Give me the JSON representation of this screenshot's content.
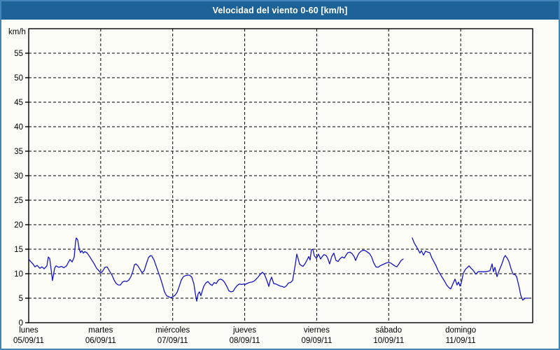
{
  "header": {
    "title": "Velocidad del viento 0-60 [km/h]"
  },
  "colors": {
    "titlebar_bg": "#1E6397",
    "window_border": "#4385B8",
    "chart_bg": "#FDFDF8",
    "line": "#1414C8",
    "grid": "#000000",
    "text": "#000000"
  },
  "chart_data": {
    "type": "line",
    "title": "Velocidad del viento 0-60 [km/h]",
    "ylabel": "km/h",
    "xlabel": "",
    "ylim": [
      0,
      60
    ],
    "xlim": [
      0,
      7
    ],
    "yticks": [
      0,
      5,
      10,
      15,
      20,
      25,
      30,
      35,
      40,
      45,
      50,
      55
    ],
    "grid": "dashed",
    "legend_position": "none",
    "x_unit": "days",
    "x_categories": [
      {
        "day": "lunes",
        "date": "05/09/11"
      },
      {
        "day": "martes",
        "date": "06/09/11"
      },
      {
        "day": "miércoles",
        "date": "07/09/11"
      },
      {
        "day": "jueves",
        "date": "08/09/11"
      },
      {
        "day": "viernes",
        "date": "09/09/11"
      },
      {
        "day": "sábado",
        "date": "10/09/11"
      },
      {
        "day": "domingo",
        "date": "11/09/11"
      }
    ],
    "series": [
      {
        "name": "Velocidad del viento [km/h]",
        "segments": [
          [
            [
              0,
              13
            ],
            [
              0.019,
              12.6
            ],
            [
              0.058,
              12
            ],
            [
              0.087,
              11.4
            ],
            [
              0.117,
              11.7
            ],
            [
              0.156,
              11.1
            ],
            [
              0.185,
              11.4
            ],
            [
              0.214,
              11
            ],
            [
              0.253,
              11.6
            ],
            [
              0.272,
              13.4
            ],
            [
              0.292,
              13.1
            ],
            [
              0.311,
              10.9
            ],
            [
              0.331,
              8.6
            ],
            [
              0.36,
              11.1
            ],
            [
              0.379,
              11.6
            ],
            [
              0.418,
              11.3
            ],
            [
              0.457,
              11.5
            ],
            [
              0.486,
              11.2
            ],
            [
              0.525,
              11.6
            ],
            [
              0.554,
              12.4
            ],
            [
              0.574,
              12.9
            ],
            [
              0.603,
              12.4
            ],
            [
              0.632,
              13.4
            ],
            [
              0.651,
              16.6
            ],
            [
              0.661,
              17.3
            ],
            [
              0.681,
              16.9
            ],
            [
              0.7,
              15.1
            ],
            [
              0.719,
              14.3
            ],
            [
              0.739,
              14.7
            ],
            [
              0.758,
              14.2
            ],
            [
              0.778,
              14.5
            ],
            [
              0.807,
              14.3
            ],
            [
              0.846,
              13.5
            ],
            [
              0.885,
              12.6
            ],
            [
              0.914,
              11.9
            ],
            [
              0.943,
              11.1
            ],
            [
              0.982,
              10.5
            ],
            [
              1.001,
              10.1
            ],
            [
              1.031,
              10.6
            ],
            [
              1.06,
              11.3
            ],
            [
              1.089,
              11.4
            ],
            [
              1.128,
              10.4
            ],
            [
              1.157,
              9.7
            ],
            [
              1.186,
              8.7
            ],
            [
              1.215,
              8
            ],
            [
              1.244,
              7.7
            ],
            [
              1.274,
              7.7
            ],
            [
              1.303,
              8.3
            ],
            [
              1.332,
              8.5
            ],
            [
              1.361,
              8.4
            ],
            [
              1.39,
              8.7
            ],
            [
              1.419,
              9.4
            ],
            [
              1.449,
              10.6
            ],
            [
              1.468,
              11.8
            ],
            [
              1.488,
              12
            ],
            [
              1.517,
              11.6
            ],
            [
              1.546,
              10.9
            ],
            [
              1.575,
              10.2
            ],
            [
              1.604,
              10.6
            ],
            [
              1.633,
              12
            ],
            [
              1.663,
              13.3
            ],
            [
              1.692,
              13.7
            ],
            [
              1.711,
              13.6
            ],
            [
              1.74,
              12.8
            ],
            [
              1.769,
              11.6
            ],
            [
              1.798,
              10.4
            ],
            [
              1.828,
              9.2
            ],
            [
              1.857,
              7.8
            ],
            [
              1.886,
              6.3
            ],
            [
              1.915,
              5.5
            ],
            [
              1.944,
              5.3
            ],
            [
              1.974,
              5.1
            ],
            [
              2.003,
              5.3
            ],
            [
              2.032,
              5.6
            ],
            [
              2.061,
              6.2
            ],
            [
              2.09,
              7.4
            ],
            [
              2.119,
              8.7
            ],
            [
              2.149,
              9.4
            ],
            [
              2.178,
              9.6
            ],
            [
              2.207,
              9.7
            ],
            [
              2.236,
              9.7
            ],
            [
              2.265,
              9.3
            ],
            [
              2.294,
              7.9
            ],
            [
              2.314,
              6
            ],
            [
              2.333,
              4.4
            ],
            [
              2.353,
              5.9
            ],
            [
              2.372,
              6.3
            ],
            [
              2.392,
              5.5
            ],
            [
              2.411,
              6.5
            ],
            [
              2.431,
              7.4
            ],
            [
              2.46,
              8.1
            ],
            [
              2.489,
              8.4
            ],
            [
              2.518,
              7.9
            ],
            [
              2.547,
              7.6
            ],
            [
              2.576,
              8.2
            ],
            [
              2.606,
              8
            ],
            [
              2.635,
              8.7
            ],
            [
              2.664,
              8.9
            ],
            [
              2.693,
              8.7
            ],
            [
              2.722,
              8.2
            ],
            [
              2.751,
              7.4
            ],
            [
              2.781,
              6.5
            ],
            [
              2.81,
              6.3
            ],
            [
              2.839,
              6.4
            ],
            [
              2.868,
              7.1
            ],
            [
              2.897,
              7.6
            ],
            [
              2.926,
              7.9
            ],
            [
              2.956,
              7.8
            ],
            [
              2.985,
              7.9
            ],
            [
              3.004,
              7.8
            ],
            [
              3.033,
              8
            ],
            [
              3.063,
              8.2
            ],
            [
              3.102,
              8.3
            ],
            [
              3.14,
              8.6
            ],
            [
              3.179,
              9.2
            ],
            [
              3.218,
              9.9
            ],
            [
              3.247,
              10.3
            ],
            [
              3.276,
              9.8
            ],
            [
              3.306,
              8.7
            ],
            [
              3.335,
              7.4
            ],
            [
              3.354,
              8.6
            ],
            [
              3.374,
              9.3
            ],
            [
              3.403,
              8
            ],
            [
              3.432,
              7.9
            ],
            [
              3.461,
              7.7
            ],
            [
              3.49,
              7.5
            ],
            [
              3.52,
              7.4
            ],
            [
              3.549,
              7.2
            ],
            [
              3.578,
              7.5
            ],
            [
              3.607,
              8.1
            ],
            [
              3.636,
              8.2
            ],
            [
              3.665,
              8.6
            ],
            [
              3.685,
              10.3
            ],
            [
              3.704,
              12
            ],
            [
              3.724,
              14
            ],
            [
              3.743,
              13
            ],
            [
              3.762,
              12
            ],
            [
              3.782,
              11.7
            ],
            [
              3.811,
              11.5
            ],
            [
              3.84,
              12.1
            ],
            [
              3.869,
              12.9
            ],
            [
              3.889,
              13.5
            ],
            [
              3.908,
              12.8
            ],
            [
              3.927,
              14.9
            ],
            [
              3.947,
              15
            ],
            [
              3.966,
              13.7
            ],
            [
              3.996,
              13.1
            ],
            [
              4.025,
              14
            ],
            [
              4.054,
              13
            ],
            [
              4.083,
              13.6
            ],
            [
              4.102,
              13.9
            ],
            [
              4.132,
              13.7
            ],
            [
              4.151,
              13.2
            ],
            [
              4.18,
              12
            ],
            [
              4.209,
              13.5
            ],
            [
              4.238,
              14.2
            ],
            [
              4.268,
              12.7
            ],
            [
              4.297,
              12.5
            ],
            [
              4.326,
              13.1
            ],
            [
              4.355,
              13.4
            ],
            [
              4.384,
              13.2
            ],
            [
              4.413,
              13.9
            ],
            [
              4.433,
              14.3
            ],
            [
              4.462,
              14.4
            ],
            [
              4.491,
              14.1
            ],
            [
              4.52,
              13.5
            ],
            [
              4.54,
              12.7
            ],
            [
              4.569,
              13.7
            ],
            [
              4.588,
              14.2
            ],
            [
              4.617,
              14.6
            ],
            [
              4.646,
              14.8
            ],
            [
              4.676,
              14.7
            ],
            [
              4.705,
              14.4
            ],
            [
              4.734,
              14.1
            ],
            [
              4.763,
              13.4
            ],
            [
              4.792,
              12.2
            ],
            [
              4.822,
              11.4
            ],
            [
              4.851,
              11.3
            ],
            [
              4.88,
              11.6
            ],
            [
              4.909,
              11.8
            ],
            [
              4.938,
              12
            ],
            [
              4.967,
              12.2
            ],
            [
              4.997,
              12.3
            ],
            [
              5.026,
              12.2
            ],
            [
              5.055,
              11.9
            ],
            [
              5.084,
              11.6
            ],
            [
              5.113,
              11.4
            ],
            [
              5.142,
              12
            ],
            [
              5.172,
              12.7
            ],
            [
              5.201,
              13
            ]
          ],
          [
            [
              5.327,
              17.3
            ],
            [
              5.357,
              16.2
            ],
            [
              5.386,
              15.5
            ],
            [
              5.415,
              14.7
            ],
            [
              5.434,
              14.2
            ],
            [
              5.454,
              14.7
            ],
            [
              5.483,
              13.8
            ],
            [
              5.512,
              14.6
            ],
            [
              5.541,
              14.4
            ],
            [
              5.57,
              14.3
            ],
            [
              5.6,
              13.2
            ],
            [
              5.629,
              12.4
            ],
            [
              5.658,
              11.6
            ],
            [
              5.687,
              10.6
            ],
            [
              5.716,
              9.9
            ],
            [
              5.745,
              9.2
            ],
            [
              5.775,
              8.5
            ],
            [
              5.804,
              7.7
            ],
            [
              5.833,
              7.2
            ],
            [
              5.862,
              6.9
            ],
            [
              5.891,
              7.9
            ],
            [
              5.921,
              8.9
            ],
            [
              5.95,
              7.7
            ],
            [
              5.969,
              8.3
            ],
            [
              5.989,
              7.5
            ],
            [
              6.008,
              8.1
            ],
            [
              6.037,
              10.1
            ],
            [
              6.066,
              10.9
            ],
            [
              6.096,
              11.3
            ],
            [
              6.115,
              11.6
            ],
            [
              6.144,
              11.1
            ],
            [
              6.173,
              10.7
            ],
            [
              6.212,
              9.9
            ],
            [
              6.241,
              10.4
            ],
            [
              6.27,
              10.4
            ],
            [
              6.309,
              10.4
            ],
            [
              6.348,
              10.4
            ],
            [
              6.377,
              10.5
            ],
            [
              6.407,
              10.6
            ],
            [
              6.436,
              12
            ],
            [
              6.455,
              10.4
            ],
            [
              6.475,
              11.3
            ],
            [
              6.504,
              9.4
            ],
            [
              6.533,
              10.6
            ],
            [
              6.572,
              12
            ],
            [
              6.601,
              13.3
            ],
            [
              6.62,
              13.7
            ],
            [
              6.649,
              13.1
            ],
            [
              6.669,
              12.5
            ],
            [
              6.698,
              11.1
            ],
            [
              6.727,
              9.9
            ],
            [
              6.756,
              9.8
            ],
            [
              6.776,
              9.4
            ],
            [
              6.795,
              8.3
            ],
            [
              6.815,
              7
            ],
            [
              6.834,
              5.6
            ],
            [
              6.863,
              4.6
            ],
            [
              6.892,
              5
            ],
            [
              6.921,
              5
            ],
            [
              6.941,
              5
            ]
          ]
        ]
      }
    ]
  }
}
